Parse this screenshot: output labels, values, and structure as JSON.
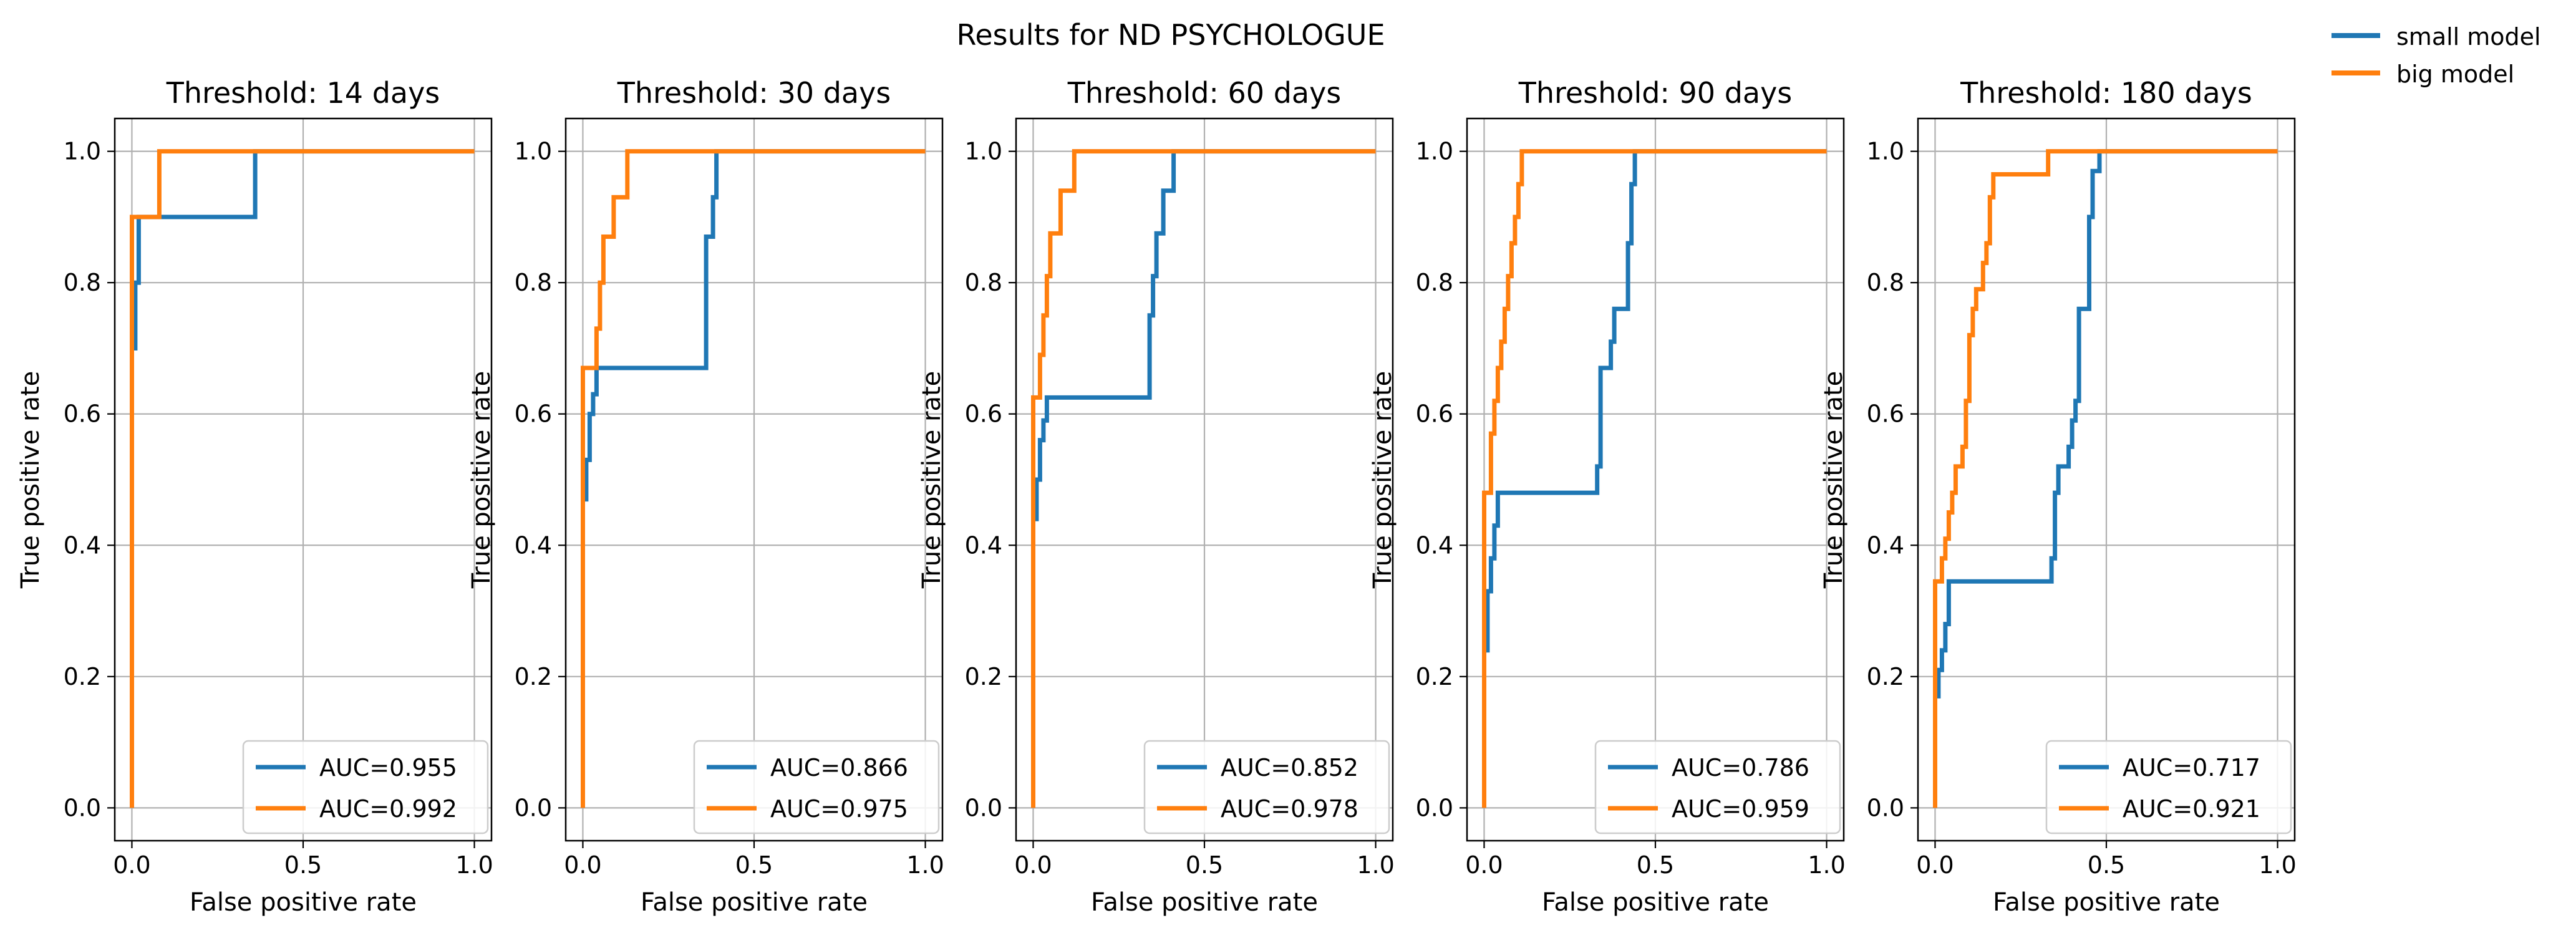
{
  "figure": {
    "title": "Results for ND PSYCHOLOGUE",
    "legend": [
      {
        "label": "small model",
        "color": "#1f77b4"
      },
      {
        "label": "big model",
        "color": "#ff7f0e"
      }
    ]
  },
  "chart_data": [
    {
      "type": "line",
      "title": "Threshold: 14 days",
      "xlabel": "False positive rate",
      "ylabel": "True positive rate",
      "xlim": [
        -0.05,
        1.05
      ],
      "ylim": [
        -0.05,
        1.05
      ],
      "xticks": [
        "0.0",
        "0.5",
        "1.0"
      ],
      "yticks": [
        "0.0",
        "0.2",
        "0.4",
        "0.6",
        "0.8",
        "1.0"
      ],
      "grid": true,
      "legend_position": "lower-right",
      "series": [
        {
          "name": "small model",
          "auc_label": "AUC=0.955",
          "color": "#1f77b4",
          "x": [
            0,
            0,
            0.01,
            0.01,
            0.02,
            0.02,
            0.03,
            0.03,
            0.36,
            0.36,
            1.0
          ],
          "y": [
            0,
            0.7,
            0.7,
            0.8,
            0.8,
            0.9,
            0.9,
            0.9,
            0.9,
            1.0,
            1.0
          ]
        },
        {
          "name": "big model",
          "auc_label": "AUC=0.992",
          "color": "#ff7f0e",
          "x": [
            0,
            0,
            0.08,
            0.08,
            1.0
          ],
          "y": [
            0,
            0.9,
            0.9,
            1.0,
            1.0
          ]
        }
      ]
    },
    {
      "type": "line",
      "title": "Threshold: 30 days",
      "xlabel": "False positive rate",
      "ylabel": "True positive rate",
      "xlim": [
        -0.05,
        1.05
      ],
      "ylim": [
        -0.05,
        1.05
      ],
      "xticks": [
        "0.0",
        "0.5",
        "1.0"
      ],
      "yticks": [
        "0.0",
        "0.2",
        "0.4",
        "0.6",
        "0.8",
        "1.0"
      ],
      "grid": true,
      "legend_position": "lower-right",
      "series": [
        {
          "name": "small model",
          "auc_label": "AUC=0.866",
          "color": "#1f77b4",
          "x": [
            0,
            0,
            0.01,
            0.01,
            0.02,
            0.02,
            0.03,
            0.03,
            0.04,
            0.04,
            0.36,
            0.36,
            0.38,
            0.38,
            0.39,
            0.39,
            1.0
          ],
          "y": [
            0,
            0.47,
            0.47,
            0.53,
            0.53,
            0.6,
            0.6,
            0.63,
            0.63,
            0.67,
            0.67,
            0.87,
            0.87,
            0.93,
            0.93,
            1.0,
            1.0
          ]
        },
        {
          "name": "big model",
          "auc_label": "AUC=0.975",
          "color": "#ff7f0e",
          "x": [
            0,
            0,
            0.04,
            0.04,
            0.05,
            0.05,
            0.06,
            0.06,
            0.09,
            0.09,
            0.13,
            0.13,
            1.0
          ],
          "y": [
            0,
            0.67,
            0.67,
            0.73,
            0.73,
            0.8,
            0.8,
            0.87,
            0.87,
            0.93,
            0.93,
            1.0,
            1.0
          ]
        }
      ]
    },
    {
      "type": "line",
      "title": "Threshold: 60 days",
      "xlabel": "False positive rate",
      "ylabel": "True positive rate",
      "xlim": [
        -0.05,
        1.05
      ],
      "ylim": [
        -0.05,
        1.05
      ],
      "xticks": [
        "0.0",
        "0.5",
        "1.0"
      ],
      "yticks": [
        "0.0",
        "0.2",
        "0.4",
        "0.6",
        "0.8",
        "1.0"
      ],
      "grid": true,
      "legend_position": "lower-right",
      "series": [
        {
          "name": "small model",
          "auc_label": "AUC=0.852",
          "color": "#1f77b4",
          "x": [
            0,
            0,
            0.01,
            0.01,
            0.02,
            0.02,
            0.03,
            0.03,
            0.04,
            0.04,
            0.34,
            0.34,
            0.35,
            0.35,
            0.36,
            0.36,
            0.38,
            0.38,
            0.41,
            0.41,
            1.0
          ],
          "y": [
            0,
            0.44,
            0.44,
            0.5,
            0.5,
            0.56,
            0.56,
            0.59,
            0.59,
            0.625,
            0.625,
            0.75,
            0.75,
            0.81,
            0.81,
            0.875,
            0.875,
            0.94,
            0.94,
            1.0,
            1.0
          ]
        },
        {
          "name": "big model",
          "auc_label": "AUC=0.978",
          "color": "#ff7f0e",
          "x": [
            0,
            0,
            0.02,
            0.02,
            0.03,
            0.03,
            0.04,
            0.04,
            0.05,
            0.05,
            0.08,
            0.08,
            0.12,
            0.12,
            1.0
          ],
          "y": [
            0,
            0.625,
            0.625,
            0.69,
            0.69,
            0.75,
            0.75,
            0.81,
            0.81,
            0.875,
            0.875,
            0.94,
            0.94,
            1.0,
            1.0
          ]
        }
      ]
    },
    {
      "type": "line",
      "title": "Threshold: 90 days",
      "xlabel": "False positive rate",
      "ylabel": "True positive rate",
      "xlim": [
        -0.05,
        1.05
      ],
      "ylim": [
        -0.05,
        1.05
      ],
      "xticks": [
        "0.0",
        "0.5",
        "1.0"
      ],
      "yticks": [
        "0.0",
        "0.2",
        "0.4",
        "0.6",
        "0.8",
        "1.0"
      ],
      "grid": true,
      "legend_position": "lower-right",
      "series": [
        {
          "name": "small model",
          "auc_label": "AUC=0.786",
          "color": "#1f77b4",
          "x": [
            0,
            0,
            0.01,
            0.01,
            0.02,
            0.02,
            0.03,
            0.03,
            0.04,
            0.04,
            0.33,
            0.33,
            0.34,
            0.34,
            0.37,
            0.37,
            0.38,
            0.38,
            0.42,
            0.42,
            0.43,
            0.43,
            0.44,
            0.44,
            1.0
          ],
          "y": [
            0,
            0.24,
            0.24,
            0.33,
            0.33,
            0.38,
            0.38,
            0.43,
            0.43,
            0.48,
            0.48,
            0.52,
            0.52,
            0.67,
            0.67,
            0.71,
            0.71,
            0.76,
            0.76,
            0.86,
            0.86,
            0.95,
            0.95,
            1.0,
            1.0
          ]
        },
        {
          "name": "big model",
          "auc_label": "AUC=0.959",
          "color": "#ff7f0e",
          "x": [
            0,
            0,
            0.02,
            0.02,
            0.03,
            0.03,
            0.04,
            0.04,
            0.05,
            0.05,
            0.06,
            0.06,
            0.07,
            0.07,
            0.08,
            0.08,
            0.09,
            0.09,
            0.1,
            0.1,
            0.11,
            0.11,
            1.0
          ],
          "y": [
            0,
            0.48,
            0.48,
            0.57,
            0.57,
            0.62,
            0.62,
            0.67,
            0.67,
            0.71,
            0.71,
            0.76,
            0.76,
            0.81,
            0.81,
            0.86,
            0.86,
            0.9,
            0.9,
            0.95,
            0.95,
            1.0,
            1.0
          ]
        }
      ]
    },
    {
      "type": "line",
      "title": "Threshold: 180 days",
      "xlabel": "False positive rate",
      "ylabel": "True positive rate",
      "xlim": [
        -0.05,
        1.05
      ],
      "ylim": [
        -0.05,
        1.05
      ],
      "xticks": [
        "0.0",
        "0.5",
        "1.0"
      ],
      "yticks": [
        "0.0",
        "0.2",
        "0.4",
        "0.6",
        "0.8",
        "1.0"
      ],
      "grid": true,
      "legend_position": "lower-right",
      "series": [
        {
          "name": "small model",
          "auc_label": "AUC=0.717",
          "color": "#1f77b4",
          "x": [
            0,
            0,
            0.01,
            0.01,
            0.02,
            0.02,
            0.03,
            0.03,
            0.04,
            0.04,
            0.34,
            0.34,
            0.35,
            0.35,
            0.36,
            0.36,
            0.39,
            0.39,
            0.4,
            0.4,
            0.41,
            0.41,
            0.42,
            0.42,
            0.45,
            0.45,
            0.46,
            0.46,
            0.48,
            0.48,
            1.0
          ],
          "y": [
            0,
            0.17,
            0.17,
            0.21,
            0.21,
            0.24,
            0.24,
            0.28,
            0.28,
            0.345,
            0.345,
            0.38,
            0.38,
            0.48,
            0.48,
            0.52,
            0.52,
            0.55,
            0.55,
            0.59,
            0.59,
            0.62,
            0.62,
            0.76,
            0.76,
            0.9,
            0.9,
            0.97,
            0.97,
            1.0,
            1.0
          ]
        },
        {
          "name": "big model",
          "auc_label": "AUC=0.921",
          "color": "#ff7f0e",
          "x": [
            0,
            0,
            0.02,
            0.02,
            0.03,
            0.03,
            0.04,
            0.04,
            0.05,
            0.05,
            0.06,
            0.06,
            0.08,
            0.08,
            0.09,
            0.09,
            0.1,
            0.1,
            0.11,
            0.11,
            0.12,
            0.12,
            0.14,
            0.14,
            0.15,
            0.15,
            0.16,
            0.16,
            0.17,
            0.17,
            0.33,
            0.33,
            1.0
          ],
          "y": [
            0,
            0.345,
            0.345,
            0.38,
            0.38,
            0.41,
            0.41,
            0.45,
            0.45,
            0.48,
            0.48,
            0.52,
            0.52,
            0.55,
            0.55,
            0.62,
            0.62,
            0.72,
            0.72,
            0.76,
            0.76,
            0.79,
            0.79,
            0.83,
            0.83,
            0.86,
            0.86,
            0.93,
            0.93,
            0.965,
            0.965,
            1.0,
            1.0
          ]
        }
      ]
    }
  ]
}
